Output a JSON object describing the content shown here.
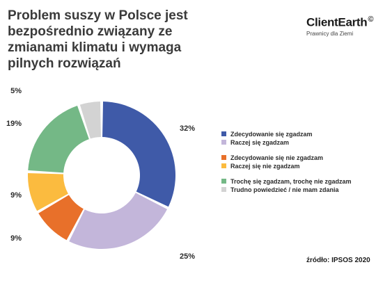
{
  "header": {
    "title": "Problem suszy w Polsce jest\nbezpośrednio związany ze\nzmianami klimatu i wymaga\npilnych rozwiązań"
  },
  "brand": {
    "name": "ClientEarth",
    "mark": "©",
    "tagline": "Prawnicy dla Ziemi"
  },
  "source": "źródło: IPSOS 2020",
  "chart_data": {
    "type": "pie",
    "donut": true,
    "slices": [
      {
        "label": "Zdecydowanie się zgadzam",
        "value": 32,
        "value_label": "32%",
        "color": "#3f5aa8"
      },
      {
        "label": "Raczej się zgadzam",
        "value": 25,
        "value_label": "25%",
        "color": "#c3b6da"
      },
      {
        "label": "Zdecydowanie się nie zgadzam",
        "value": 9,
        "value_label": "9%",
        "color": "#e8702a"
      },
      {
        "label": "Raczej się nie zgadzam",
        "value": 9,
        "value_label": "9%",
        "color": "#fbbb3f"
      },
      {
        "label": "Trochę się zgadzam, trochę nie zgadzam",
        "value": 19,
        "value_label": "19%",
        "color": "#74b886"
      },
      {
        "label": "Trudno powiedzieć / nie mam zdania",
        "value": 5,
        "value_label": "5%",
        "color": "#d3d3d3"
      }
    ],
    "legend_placement": "right"
  }
}
